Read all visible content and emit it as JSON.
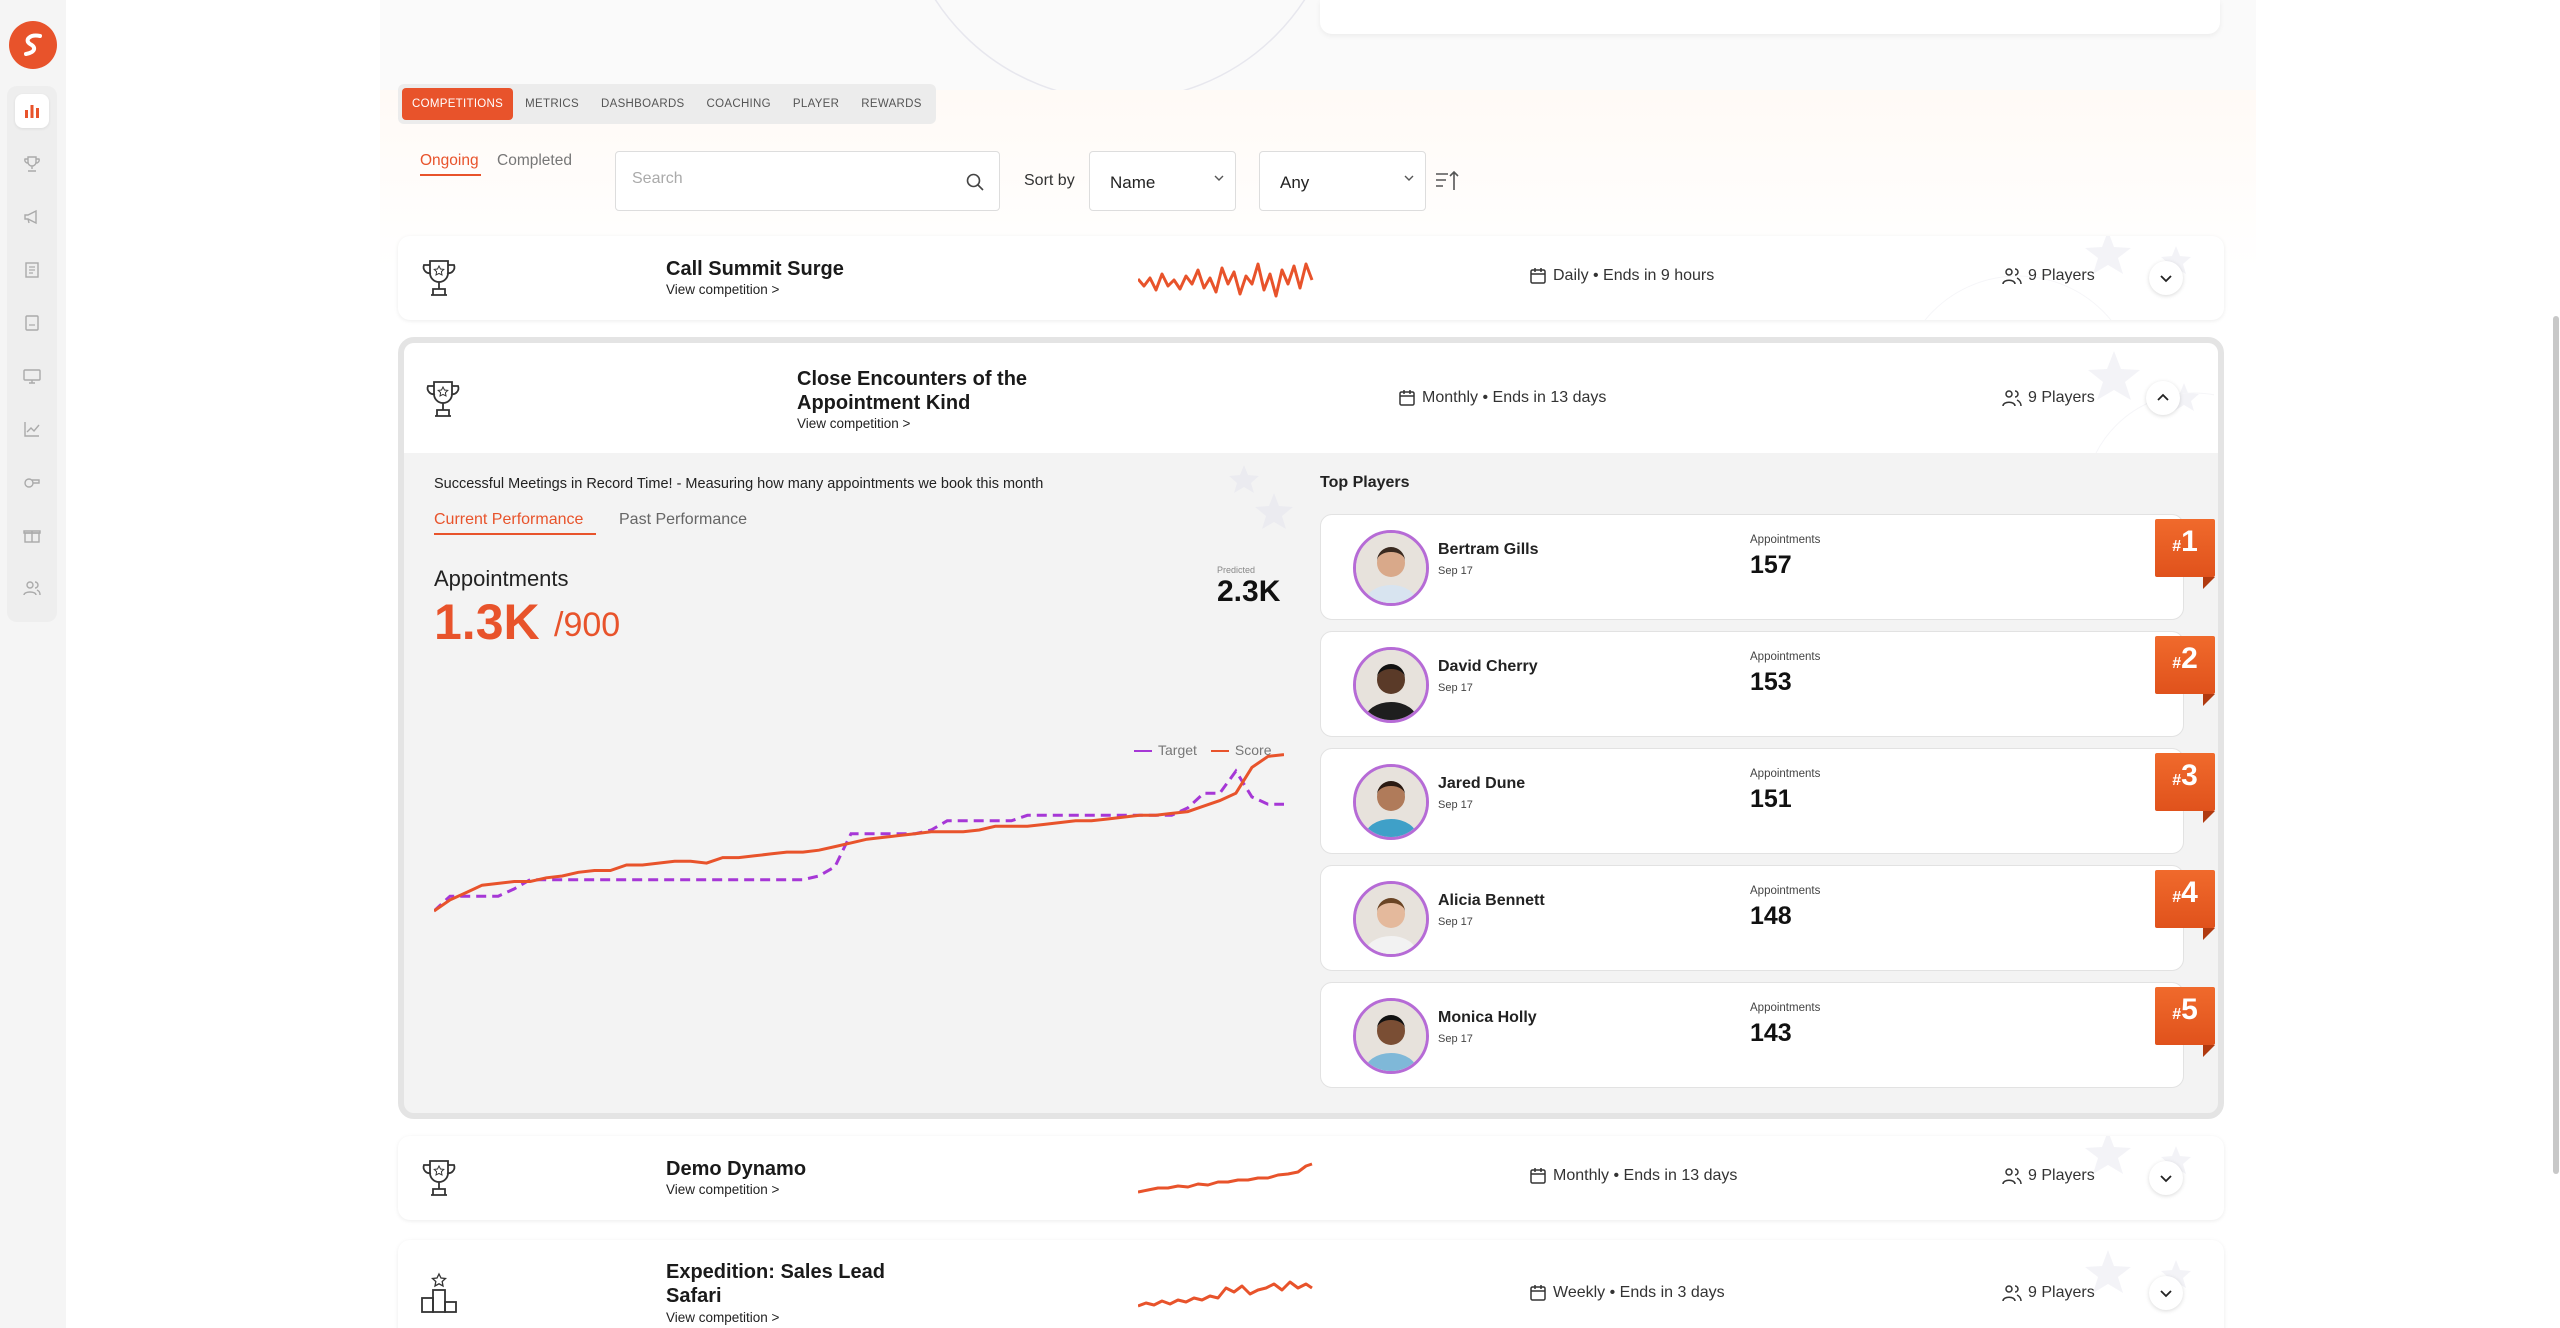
{
  "nav_tabs": [
    "COMPETITIONS",
    "METRICS",
    "DASHBOARDS",
    "COACHING",
    "PLAYER",
    "REWARDS"
  ],
  "status_tabs": {
    "ongoing": "Ongoing",
    "completed": "Completed"
  },
  "search": {
    "placeholder": "Search",
    "value": ""
  },
  "sort": {
    "label": "Sort by",
    "selected": "Name",
    "filter_selected": "Any"
  },
  "competitions": [
    {
      "title": "Call Summit Surge",
      "link": "View competition >",
      "schedule": "Daily • Ends in 9 hours",
      "players": "9 Players"
    },
    {
      "title": "Close Encounters of the Appointment Kind",
      "link": "View competition >",
      "schedule": "Monthly • Ends in 13 days",
      "players": "9 Players"
    },
    {
      "title": "Demo Dynamo",
      "link": "View competition >",
      "schedule": "Monthly • Ends in 13 days",
      "players": "9 Players"
    },
    {
      "title": "Expedition: Sales Lead Safari",
      "link": "View competition >",
      "schedule": "Weekly • Ends in 3 days",
      "players": "9 Players"
    }
  ],
  "expanded": {
    "description": "Successful Meetings in Record Time! - Measuring how many appointments we book this month",
    "tabs": {
      "current": "Current Performance",
      "past": "Past Performance"
    },
    "metric": {
      "name": "Appointments",
      "score": "1.3K",
      "target": "/900",
      "predicted_label": "Predicted",
      "predicted_value": "2.3K"
    },
    "top_players_title": "Top Players",
    "players": [
      {
        "name": "Bertram Gills",
        "date": "Sep 17",
        "metric_label": "Appointments",
        "value": "157",
        "rank": "1"
      },
      {
        "name": "David Cherry",
        "date": "Sep 17",
        "metric_label": "Appointments",
        "value": "153",
        "rank": "2"
      },
      {
        "name": "Jared Dune",
        "date": "Sep 17",
        "metric_label": "Appointments",
        "value": "151",
        "rank": "3"
      },
      {
        "name": "Alicia Bennett",
        "date": "Sep 17",
        "metric_label": "Appointments",
        "value": "148",
        "rank": "4"
      },
      {
        "name": "Monica Holly",
        "date": "Sep 17",
        "metric_label": "Appointments",
        "value": "143",
        "rank": "5"
      }
    ]
  },
  "chart_data": {
    "type": "line",
    "title": "",
    "xlabel": "",
    "ylabel": "",
    "legend_position": "top-right",
    "grid": false,
    "series": [
      {
        "name": "Target",
        "color": "#a637d6",
        "values": [
          0.06,
          0.14,
          0.14,
          0.14,
          0.14,
          0.18,
          0.23,
          0.23,
          0.23,
          0.23,
          0.23,
          0.23,
          0.23,
          0.23,
          0.23,
          0.23,
          0.23,
          0.23,
          0.23,
          0.23,
          0.23,
          0.23,
          0.23,
          0.23,
          0.25,
          0.3,
          0.48,
          0.48,
          0.48,
          0.48,
          0.48,
          0.5,
          0.55,
          0.55,
          0.55,
          0.55,
          0.55,
          0.58,
          0.58,
          0.58,
          0.58,
          0.58,
          0.58,
          0.58,
          0.58,
          0.58,
          0.58,
          0.62,
          0.7,
          0.7,
          0.82,
          0.68,
          0.64,
          0.64
        ]
      },
      {
        "name": "Score",
        "color": "#e8532b",
        "values": [
          0.06,
          0.12,
          0.16,
          0.2,
          0.21,
          0.22,
          0.22,
          0.24,
          0.25,
          0.27,
          0.28,
          0.28,
          0.31,
          0.31,
          0.32,
          0.33,
          0.33,
          0.32,
          0.35,
          0.35,
          0.36,
          0.37,
          0.38,
          0.38,
          0.39,
          0.41,
          0.43,
          0.45,
          0.46,
          0.47,
          0.48,
          0.49,
          0.49,
          0.49,
          0.5,
          0.52,
          0.52,
          0.52,
          0.53,
          0.54,
          0.55,
          0.55,
          0.56,
          0.57,
          0.58,
          0.58,
          0.59,
          0.6,
          0.63,
          0.66,
          0.7,
          0.84,
          0.9,
          0.91
        ]
      }
    ],
    "ylim": [
      0,
      1
    ]
  },
  "colors": {
    "accent": "#e8532b",
    "target": "#a637d6",
    "avatar_ring": "#b66bd6"
  }
}
